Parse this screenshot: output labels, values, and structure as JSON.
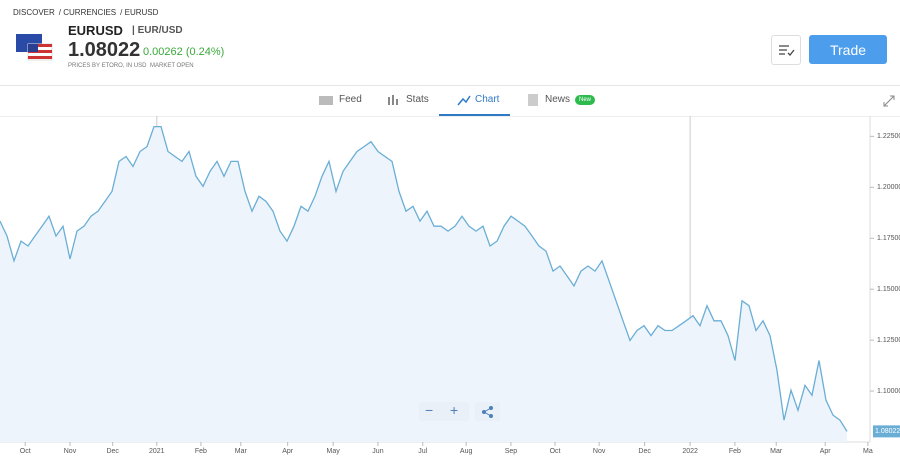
{
  "breadcrumb": [
    "DISCOVER",
    "CURRENCIES",
    "EURUSD"
  ],
  "header": {
    "symbol": "EURUSD",
    "pair": "EUR/USD",
    "price": "1.08022",
    "change": "0.00262 (0.24%)",
    "source": "PRICES BY ETORO, IN USD",
    "status": "MARKET OPEN",
    "button": "Trade"
  },
  "tabs": [
    {
      "label": "Feed"
    },
    {
      "label": "Stats"
    },
    {
      "label": "Chart"
    },
    {
      "label": "News",
      "badge": "New"
    }
  ],
  "chart_data": {
    "type": "line",
    "color": "#6aaed6",
    "fill": "#eef4fb",
    "values": [
      1.1834,
      1.1761,
      1.1639,
      1.1736,
      1.1712,
      1.1761,
      1.1809,
      1.1858,
      1.1761,
      1.1809,
      1.1648,
      1.1785,
      1.1809,
      1.1858,
      1.1883,
      1.1931,
      1.198,
      1.2127,
      1.2151,
      1.2102,
      1.2176,
      1.22,
      1.2298,
      1.2298,
      1.2176,
      1.2151,
      1.2127,
      1.2176,
      1.2054,
      1.2005,
      1.2078,
      1.2127,
      1.2054,
      1.2127,
      1.2127,
      1.198,
      1.1883,
      1.1956,
      1.1931,
      1.1883,
      1.1785,
      1.1736,
      1.1809,
      1.1907,
      1.1883,
      1.1956,
      1.2054,
      1.2127,
      1.198,
      1.2078,
      1.2127,
      1.2176,
      1.22,
      1.2224,
      1.2176,
      1.2151,
      1.2127,
      1.198,
      1.1883,
      1.1907,
      1.1834,
      1.1883,
      1.1809,
      1.1809,
      1.1785,
      1.1809,
      1.1858,
      1.1809,
      1.1785,
      1.1809,
      1.1712,
      1.1736,
      1.1809,
      1.1858,
      1.1834,
      1.1809,
      1.1761,
      1.1712,
      1.1687,
      1.1589,
      1.1614,
      1.1565,
      1.1516,
      1.1589,
      1.1614,
      1.1589,
      1.1639,
      1.1541,
      1.1443,
      1.1345,
      1.1248,
      1.1297,
      1.1321,
      1.1272,
      1.1321,
      1.1297,
      1.1297,
      1.1321,
      1.1345,
      1.137,
      1.1321,
      1.1419,
      1.1345,
      1.1345,
      1.1272,
      1.115,
      1.1443,
      1.1419,
      1.1297,
      1.1345,
      1.1272,
      1.1101,
      1.0857,
      1.1004,
      1.0906,
      1.1028,
      1.0979,
      1.115,
      1.0955,
      1.0882,
      1.0857,
      1.08022
    ],
    "last_label": "1.08022",
    "xlim": [
      0,
      124.3
    ],
    "xticks": [
      {
        "value": 3.6,
        "label": "Oct"
      },
      {
        "value": 10,
        "label": "Nov"
      },
      {
        "value": 16.1,
        "label": "Dec"
      },
      {
        "value": 22.4,
        "label": "2021"
      },
      {
        "value": 28.7,
        "label": "Feb"
      },
      {
        "value": 34.4,
        "label": "Mar"
      },
      {
        "value": 41.1,
        "label": "Apr"
      },
      {
        "value": 47.6,
        "label": "May"
      },
      {
        "value": 54,
        "label": "Jun"
      },
      {
        "value": 60.4,
        "label": "Jul"
      },
      {
        "value": 66.6,
        "label": "Aug"
      },
      {
        "value": 73,
        "label": "Sep"
      },
      {
        "value": 79.3,
        "label": "Oct"
      },
      {
        "value": 85.6,
        "label": "Nov"
      },
      {
        "value": 92.1,
        "label": "Dec"
      },
      {
        "value": 98.6,
        "label": "2022"
      },
      {
        "value": 105,
        "label": "Feb"
      },
      {
        "value": 110.9,
        "label": "Mar"
      },
      {
        "value": 117.9,
        "label": "Apr"
      },
      {
        "value": 124,
        "label": "Ma"
      }
    ],
    "ylim": [
      1.075,
      1.235
    ],
    "yticks": [
      {
        "value": 1.1,
        "label": "1.10000"
      },
      {
        "value": 1.125,
        "label": "1.12500"
      },
      {
        "value": 1.15,
        "label": "1.15000"
      },
      {
        "value": 1.175,
        "label": "1.17500"
      },
      {
        "value": 1.2,
        "label": "1.20000"
      },
      {
        "value": 1.225,
        "label": "1.22500"
      }
    ]
  }
}
